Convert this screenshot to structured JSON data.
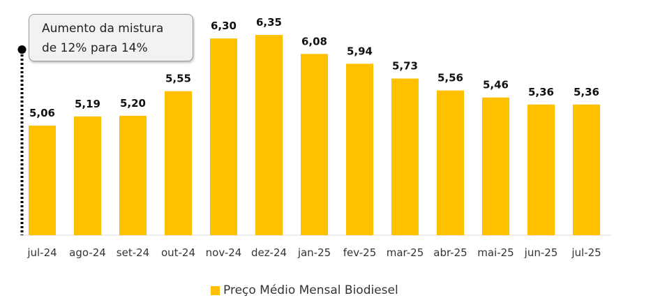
{
  "colors": {
    "bar": "#FFC000",
    "axis": "#d9d9d9",
    "text": "#333333",
    "marker": "#000000"
  },
  "annotation": {
    "line1": "Aumento da mistura",
    "line2": "de 12% para 14%"
  },
  "legend": {
    "label": "Preço Médio Mensal Biodiesel"
  },
  "chart_data": {
    "type": "bar",
    "categories": [
      "jul-24",
      "ago-24",
      "set-24",
      "out-24",
      "nov-24",
      "dez-24",
      "jan-25",
      "fev-25",
      "mar-25",
      "abr-25",
      "mai-25",
      "jun-25",
      "jul-25"
    ],
    "series": [
      {
        "name": "Preço Médio Mensal Biodiesel",
        "values": [
          5.06,
          5.19,
          5.2,
          5.55,
          6.3,
          6.35,
          6.08,
          5.94,
          5.73,
          5.56,
          5.46,
          5.36,
          5.36
        ],
        "labels": [
          "5,06",
          "5,19",
          "5,20",
          "5,55",
          "6,30",
          "6,35",
          "6,08",
          "5,94",
          "5,73",
          "5,56",
          "5,46",
          "5,36",
          "5,36"
        ]
      }
    ],
    "ylim": [
      3.5,
      6.5
    ],
    "title": "",
    "xlabel": "",
    "ylabel": "",
    "grid": false,
    "legend_position": "bottom",
    "annotation_at_category": "jul-24"
  }
}
